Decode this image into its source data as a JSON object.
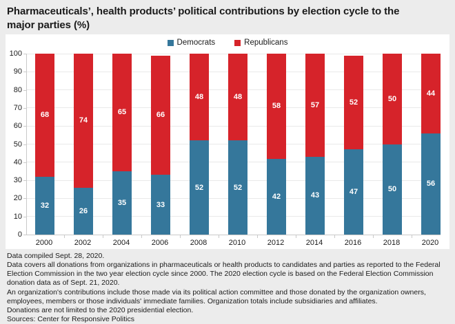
{
  "title": "Pharmaceuticals’, health products’ political contributions by election cycle to the major parties (%)",
  "colors": {
    "democrats": "#35779b",
    "republicans": "#d6232a",
    "panel_background": "#ffffff",
    "page_background": "#ececec",
    "bar_value_text": "#ffffff"
  },
  "chart_data": {
    "type": "bar",
    "stacked": true,
    "categories": [
      "2000",
      "2002",
      "2004",
      "2006",
      "2008",
      "2010",
      "2012",
      "2014",
      "2016",
      "2018",
      "2020"
    ],
    "series": [
      {
        "name": "Democrats",
        "color": "#35779b",
        "values": [
          32,
          26,
          35,
          33,
          52,
          52,
          42,
          43,
          47,
          50,
          56
        ]
      },
      {
        "name": "Republicans",
        "color": "#d6232a",
        "values": [
          68,
          74,
          65,
          66,
          48,
          48,
          58,
          57,
          52,
          50,
          44
        ]
      }
    ],
    "ylabel": "",
    "xlabel": "",
    "ylim": [
      0,
      100
    ],
    "yticks": [
      0,
      10,
      20,
      30,
      40,
      50,
      60,
      70,
      80,
      90,
      100
    ],
    "grid": true,
    "legend_position": "top-center",
    "value_labels": "inside-center"
  },
  "footnotes": [
    "Data compiled Sept. 28, 2020.",
    "Data covers all donations from organizations in pharmaceuticals or health products to candidates and parties as reported to the Federal Election Commission in the two year election cycle since 2000. The 2020 election cycle is based on the Federal Election Commission donation data as of Sept. 21, 2020.",
    "An organization's contributions include those made via its political action committee and those donated by the organization owners, employees, members or those individuals' immediate families. Organization totals include subsidiaries and affiliates.",
    "Donations are not limited to the 2020 presidential election.",
    "Sources: Center for Responsive Politics"
  ]
}
